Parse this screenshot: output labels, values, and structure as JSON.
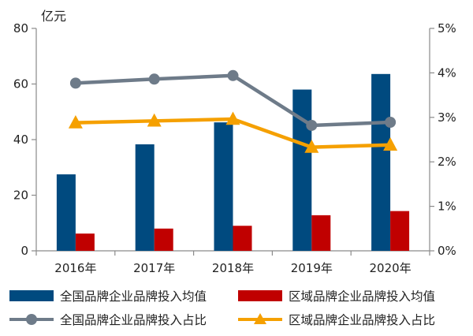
{
  "chart_data": {
    "type": "bar+line",
    "categories": [
      "2016年",
      "2017年",
      "2018年",
      "2019年",
      "2020年"
    ],
    "y_left": {
      "unit_label": "亿元",
      "range": [
        0,
        80
      ],
      "ticks": [
        "0",
        "20",
        "40",
        "60",
        "80"
      ]
    },
    "y_right": {
      "range": [
        0,
        5
      ],
      "ticks": [
        "0%",
        "1%",
        "2%",
        "3%",
        "4%",
        "5%"
      ]
    },
    "series": [
      {
        "name": "全国品牌企业品牌投入均值",
        "kind": "bar",
        "axis": "left",
        "color": "#004a7f",
        "values": [
          27.5,
          38.3,
          46.2,
          58.0,
          63.6
        ]
      },
      {
        "name": "区域品牌企业品牌投入均值",
        "kind": "bar",
        "axis": "left",
        "color": "#c00000",
        "values": [
          6.2,
          8.0,
          9.0,
          12.8,
          14.3
        ]
      },
      {
        "name": "全国品牌企业品牌投入占比",
        "kind": "line",
        "axis": "right",
        "color": "#6e7b89",
        "marker": "circle",
        "values": [
          3.77,
          3.86,
          3.94,
          2.82,
          2.89
        ]
      },
      {
        "name": "区域品牌企业品牌投入占比",
        "kind": "line",
        "axis": "right",
        "color": "#f5a000",
        "marker": "triangle",
        "values": [
          2.88,
          2.92,
          2.96,
          2.33,
          2.38
        ]
      }
    ],
    "grid": false,
    "legend_position": "bottom"
  }
}
